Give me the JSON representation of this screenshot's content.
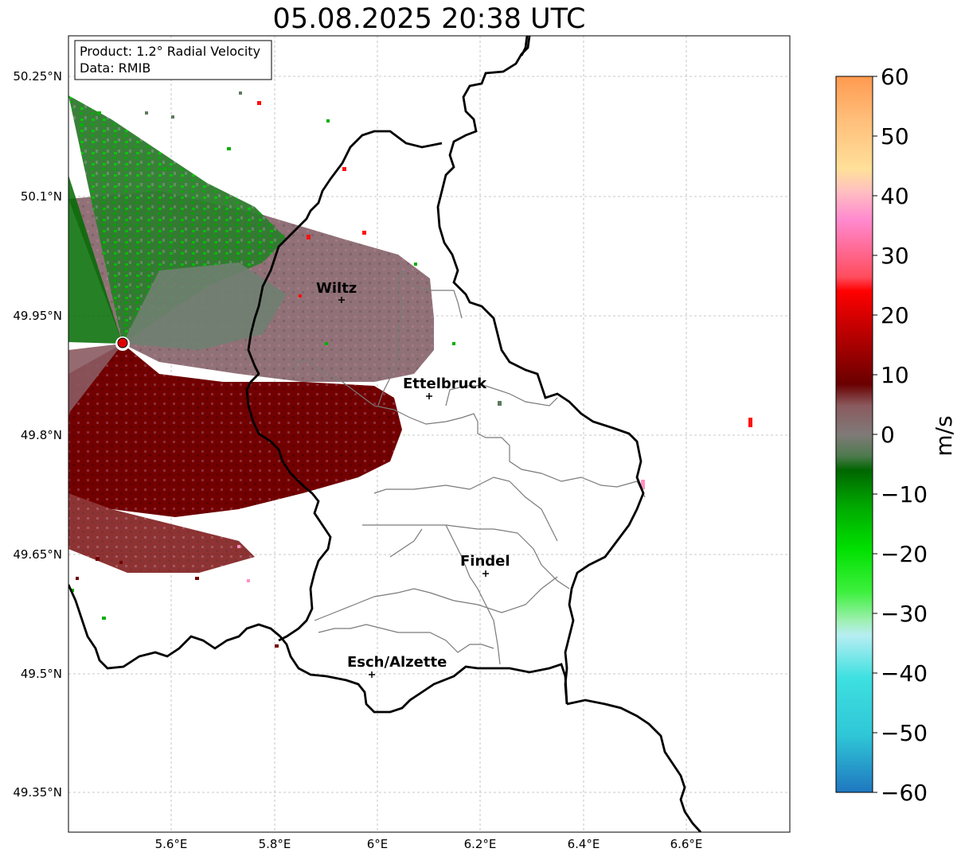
{
  "title": "05.08.2025 20:38 UTC",
  "info_box": {
    "product": "Product: 1.2° Radial Velocity",
    "data": "Data: RMIB"
  },
  "lat_ticks": [
    "50.25°N",
    "50.1°N",
    "49.95°N",
    "49.8°N",
    "49.65°N",
    "49.5°N",
    "49.35°N"
  ],
  "lon_ticks": [
    "5.6°E",
    "5.8°E",
    "6°E",
    "6.2°E",
    "6.4°E",
    "6.6°E"
  ],
  "cities": {
    "wiltz": "Wiltz",
    "ettelbruck": "Ettelbruck",
    "findel": "Findel",
    "esch": "Esch/Alzette"
  },
  "colorbar": {
    "unit": "m/s",
    "ticks": [
      "60",
      "50",
      "40",
      "30",
      "20",
      "10",
      "0",
      "−10",
      "−20",
      "−30",
      "−40",
      "−50",
      "−60"
    ],
    "range": [
      -60,
      60
    ]
  },
  "colors": {
    "outbound_dark": "#720000",
    "inbound_green": "#006a00",
    "neutral_gray": "#8a7070",
    "radar_site": "#e00000"
  }
}
